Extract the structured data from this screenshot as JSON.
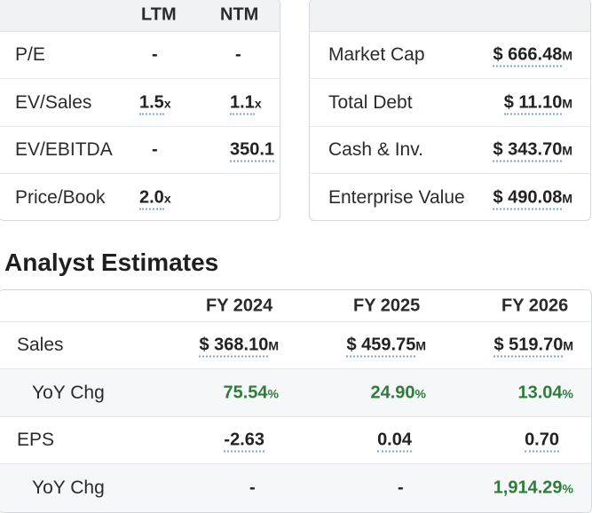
{
  "multiples": {
    "headers": [
      "LTM",
      "NTM"
    ],
    "rows": [
      {
        "label": "P/E",
        "ltm": "-",
        "ltm_sfx": "",
        "ntm": "-",
        "ntm_sfx": ""
      },
      {
        "label": "EV/Sales",
        "ltm": "1.5",
        "ltm_sfx": "x",
        "ntm": "1.1",
        "ntm_sfx": "x"
      },
      {
        "label": "EV/EBITDA",
        "ltm": "-",
        "ltm_sfx": "",
        "ntm": "350.1",
        "ntm_sfx": ""
      },
      {
        "label": "Price/Book",
        "ltm": "2.0",
        "ltm_sfx": "x",
        "ntm": "",
        "ntm_sfx": ""
      }
    ]
  },
  "valuation": {
    "rows": [
      {
        "label": "Market Cap",
        "value": "$ 666.48",
        "sfx": "M"
      },
      {
        "label": "Total Debt",
        "value": "$ 11.10",
        "sfx": "M"
      },
      {
        "label": "Cash & Inv.",
        "value": "$ 343.70",
        "sfx": "M"
      },
      {
        "label": "Enterprise Value",
        "value": "$ 490.08",
        "sfx": "M"
      }
    ]
  },
  "estimates": {
    "title": "Analyst Estimates",
    "headers": [
      "FY 2024",
      "FY 2025",
      "FY 2026"
    ],
    "sales": {
      "label": "Sales",
      "values": [
        "$ 368.10",
        "$ 459.75",
        "$ 519.70"
      ],
      "sfx": "M"
    },
    "sales_yoy": {
      "label": "YoY Chg",
      "values": [
        "75.54",
        "24.90",
        "13.04"
      ],
      "sfx": "%"
    },
    "eps": {
      "label": "EPS",
      "values": [
        "-2.63",
        "0.04",
        "0.70"
      ]
    },
    "eps_yoy": {
      "label": "YoY Chg",
      "values": [
        "-",
        "-",
        "1,914.29"
      ],
      "sfx": "%"
    }
  }
}
